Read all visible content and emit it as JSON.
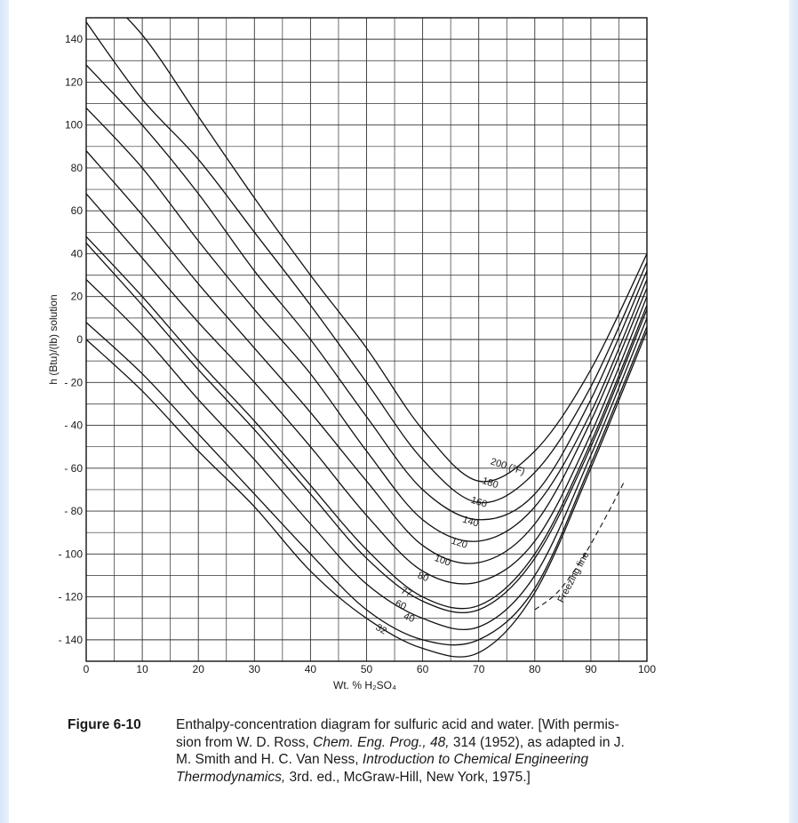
{
  "chart_data": {
    "type": "line",
    "title": "",
    "xlabel": "Wt. % H₂SO₄",
    "ylabel": "h (Btu)/(lb) solution",
    "xlim": [
      0,
      100
    ],
    "ylim": [
      -150,
      150
    ],
    "x_ticks": [
      "0",
      "10",
      "20",
      "30",
      "40",
      "50",
      "60",
      "70",
      "80",
      "90",
      "100"
    ],
    "y_ticks": [
      "140",
      "120",
      "100",
      "80",
      "60",
      "40",
      "20",
      "0",
      "- 20",
      "- 40",
      "- 60",
      "- 80",
      "- 100",
      "- 120",
      "- 140"
    ],
    "grid": true,
    "x_sample": [
      0,
      10,
      20,
      30,
      40,
      50,
      60,
      70,
      80,
      90,
      100
    ],
    "series": [
      {
        "name": "200 (°F)",
        "values": [
          168,
          142,
          104,
          66,
          30,
          -4,
          -42,
          -66,
          -52,
          -14,
          40
        ]
      },
      {
        "name": "180",
        "values": [
          148,
          112,
          84,
          50,
          16,
          -20,
          -56,
          -76,
          -62,
          -22,
          36
        ]
      },
      {
        "name": "160",
        "values": [
          128,
          100,
          68,
          32,
          0,
          -36,
          -70,
          -84,
          -72,
          -28,
          32
        ]
      },
      {
        "name": "140",
        "values": [
          108,
          80,
          46,
          14,
          -16,
          -52,
          -84,
          -94,
          -78,
          -34,
          28
        ]
      },
      {
        "name": "120",
        "values": [
          88,
          58,
          26,
          -4,
          -34,
          -66,
          -96,
          -104,
          -86,
          -38,
          24
        ]
      },
      {
        "name": "100",
        "values": [
          68,
          38,
          8,
          -20,
          -50,
          -82,
          -108,
          -113,
          -94,
          -44,
          20
        ]
      },
      {
        "name": "80",
        "values": [
          48,
          20,
          -10,
          -38,
          -68,
          -98,
          -120,
          -124,
          -100,
          -48,
          16
        ]
      },
      {
        "name": "77",
        "values": [
          45,
          16,
          -14,
          -42,
          -72,
          -102,
          -122,
          -126,
          -102,
          -50,
          14
        ]
      },
      {
        "name": "60",
        "values": [
          28,
          2,
          -28,
          -56,
          -86,
          -114,
          -130,
          -134,
          -110,
          -54,
          10
        ]
      },
      {
        "name": "40",
        "values": [
          8,
          -16,
          -44,
          -72,
          -100,
          -126,
          -140,
          -140,
          -116,
          -58,
          6
        ]
      },
      {
        "name": "32",
        "values": [
          0,
          -24,
          -52,
          -78,
          -108,
          -130,
          -144,
          -146,
          -118,
          -60,
          4
        ]
      }
    ],
    "freezing_line": {
      "label": "Freezing line",
      "x": [
        80,
        84,
        88,
        92,
        96
      ],
      "y": [
        -126,
        -118,
        -104,
        -86,
        -66
      ]
    },
    "annotations": [
      "200 (°F)",
      "180",
      "160",
      "140",
      "120",
      "100",
      "80",
      "77",
      "60",
      "40",
      "32",
      "Freezing line"
    ]
  },
  "caption": {
    "figure_number": "Figure 6-10",
    "line1": "Enthalpy-concentration diagram for sulfuric acid and water. [With permis-",
    "line2_pre": "sion from W. D. Ross, ",
    "line2_journal": "Chem. Eng. Prog., 48,",
    "line2_post": " 314 (1952), as adapted in J.",
    "line3_pre": "M. Smith and H. C. Van Ness, ",
    "line3_title": "Introduction to Chemical Engineering",
    "line4_title": "Thermodynamics,",
    "line4_post": " 3rd. ed., McGraw-Hill, New York, 1975.]"
  }
}
